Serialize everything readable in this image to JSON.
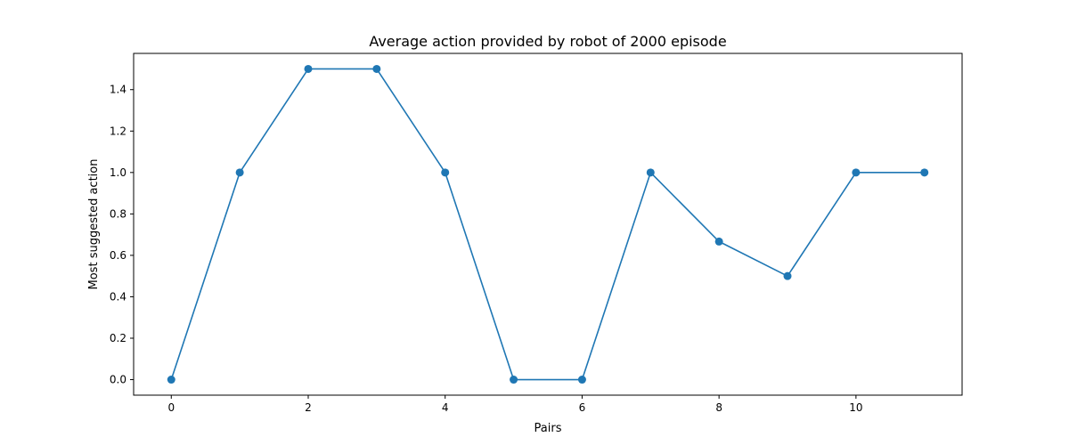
{
  "chart_data": {
    "type": "line",
    "title": "Average action provided by robot of 2000 episode",
    "xlabel": "Pairs",
    "ylabel": "Most suggested action",
    "x": [
      0,
      1,
      2,
      3,
      4,
      5,
      6,
      7,
      8,
      9,
      10,
      11
    ],
    "series": [
      {
        "values": [
          0.0,
          1.0,
          1.5,
          1.5,
          1.0,
          0.0,
          0.0,
          1.0,
          0.6667,
          0.5,
          1.0,
          1.0
        ]
      }
    ],
    "xlim": [
      -0.55,
      11.55
    ],
    "ylim": [
      -0.075,
      1.575
    ],
    "x_ticks": [
      0,
      2,
      4,
      6,
      8,
      10
    ],
    "y_ticks": [
      0.0,
      0.2,
      0.4,
      0.6,
      0.8,
      1.0,
      1.2,
      1.4
    ],
    "x_tick_labels": [
      "0",
      "2",
      "4",
      "6",
      "8",
      "10"
    ],
    "y_tick_labels": [
      "0.0",
      "0.2",
      "0.4",
      "0.6",
      "0.8",
      "1.0",
      "1.2",
      "1.4"
    ],
    "grid": false,
    "marker": "circle",
    "line_color": "#1f77b4"
  }
}
